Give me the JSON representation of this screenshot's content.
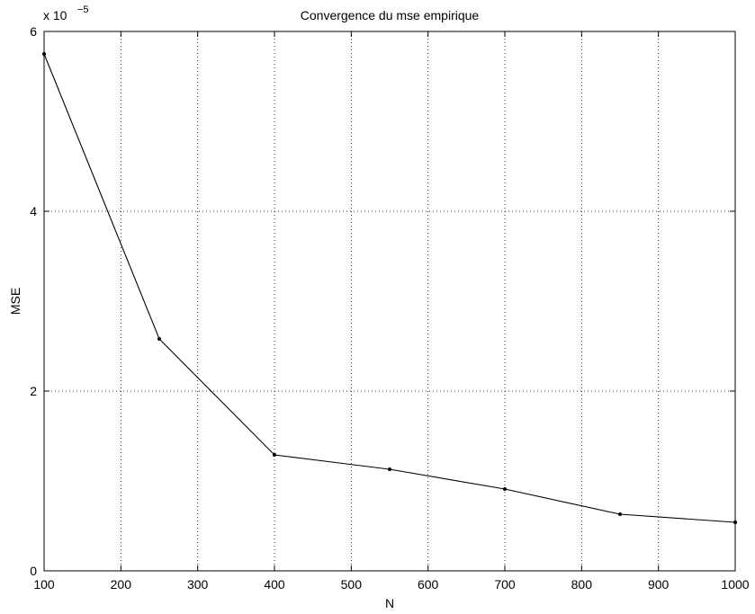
{
  "chart_data": {
    "type": "line",
    "title": "Convergence du mse empirique",
    "xlabel": "N",
    "ylabel": "MSE",
    "exponent_label": "x 10",
    "exponent_power": "−5",
    "xlim": [
      100,
      1000
    ],
    "ylim": [
      0,
      6
    ],
    "xticks": [
      "100",
      "200",
      "300",
      "400",
      "500",
      "600",
      "700",
      "800",
      "900",
      "1000"
    ],
    "yticks": [
      "0",
      "2",
      "4",
      "6"
    ],
    "grid": true,
    "series": [
      {
        "x": [
          100,
          250,
          400,
          550,
          700,
          850,
          1000
        ],
        "values": [
          5.75,
          2.58,
          1.29,
          1.13,
          0.91,
          0.63,
          0.54
        ],
        "color": "#000000"
      }
    ]
  }
}
